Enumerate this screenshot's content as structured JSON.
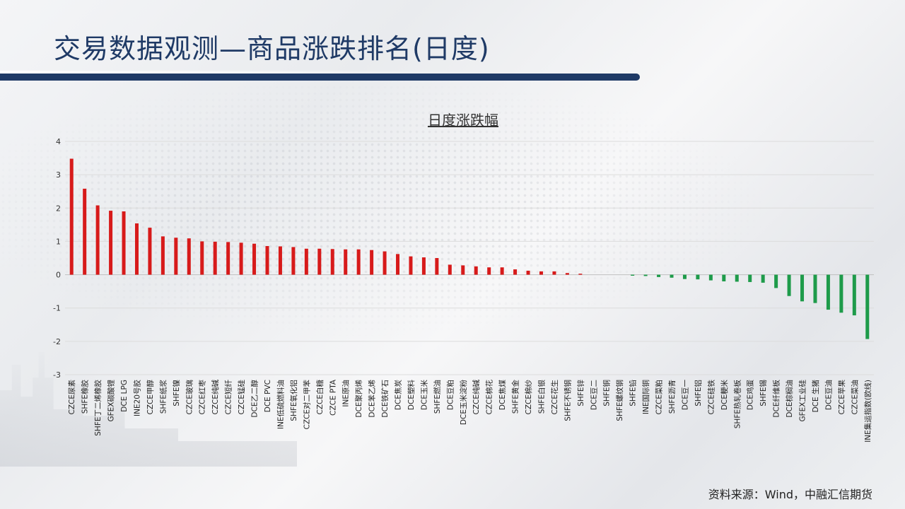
{
  "slide": {
    "title": "交易数据观测—商品涨跌排名(日度)",
    "source": "资料来源：Wind，中融汇信期货"
  },
  "colors": {
    "positive": "#d71a1a",
    "negative": "#1e9b4a",
    "title": "#1f3a66"
  },
  "chart_data": {
    "type": "bar",
    "title": "日度涨跌幅",
    "xlabel": "",
    "ylabel": "",
    "ylim": [
      -3,
      4
    ],
    "yticks": [
      4,
      3,
      2,
      1,
      0,
      -1,
      -2,
      -3
    ],
    "grid": true,
    "legend": "none",
    "categories": [
      "CZCE尿素",
      "SHFE橡胶",
      "SHFE丁二烯橡胶",
      "GFEX碳酸锂",
      "DCE LPG",
      "INE20号胶",
      "CZCE甲醇",
      "SHFE纸浆",
      "SHFE镍",
      "CZCE玻璃",
      "CZCE红枣",
      "CZCE纯碱",
      "CZCE短纤",
      "CZCE锰硅",
      "DCE乙二醇",
      "DCE PVC",
      "INE低硫燃料油",
      "SHFE氧化铝",
      "CZCE对二甲苯",
      "CZCE白糖",
      "CZCE PTA",
      "INE原油",
      "DCE聚丙烯",
      "DCE苯乙烯",
      "DCE铁矿石",
      "DCE焦炭",
      "DCE塑料",
      "DCE玉米",
      "SHFE燃油",
      "DCE豆粕",
      "DCE玉米淀粉",
      "CZCE纯碱",
      "CZCE棉花",
      "DCE焦煤",
      "SHFE黄金",
      "CZCE棉纱",
      "SHFE白银",
      "CZCE花生",
      "SHFE不锈钢",
      "SHFE锌",
      "DCE豆二",
      "SHFE铜",
      "SHFE螺纹钢",
      "SHFE铅",
      "INE国际铜",
      "CZCE菜粕",
      "SHFE沥青",
      "DCE豆一",
      "SHFE铝",
      "CZCE硅铁",
      "DCE粳米",
      "SHFE热轧卷板",
      "DCE鸡蛋",
      "SHFE锡",
      "DCE纤维板",
      "DCE棕榈油",
      "GFEX工业硅",
      "DCE 生猪",
      "DCE豆油",
      "CZCE苹果",
      "CZCE菜油",
      "INE集运指数(欧线)"
    ],
    "values": [
      3.48,
      2.58,
      2.08,
      1.92,
      1.9,
      1.54,
      1.41,
      1.15,
      1.11,
      1.09,
      1.0,
      0.99,
      0.98,
      0.96,
      0.93,
      0.86,
      0.85,
      0.83,
      0.78,
      0.78,
      0.77,
      0.76,
      0.76,
      0.74,
      0.7,
      0.62,
      0.55,
      0.52,
      0.5,
      0.3,
      0.28,
      0.25,
      0.22,
      0.22,
      0.16,
      0.12,
      0.1,
      0.1,
      0.05,
      0.03,
      0.0,
      0.0,
      0.0,
      -0.03,
      -0.04,
      -0.07,
      -0.09,
      -0.13,
      -0.14,
      -0.17,
      -0.2,
      -0.21,
      -0.22,
      -0.24,
      -0.4,
      -0.64,
      -0.8,
      -0.85,
      -1.05,
      -1.14,
      -1.22,
      -1.93
    ]
  }
}
